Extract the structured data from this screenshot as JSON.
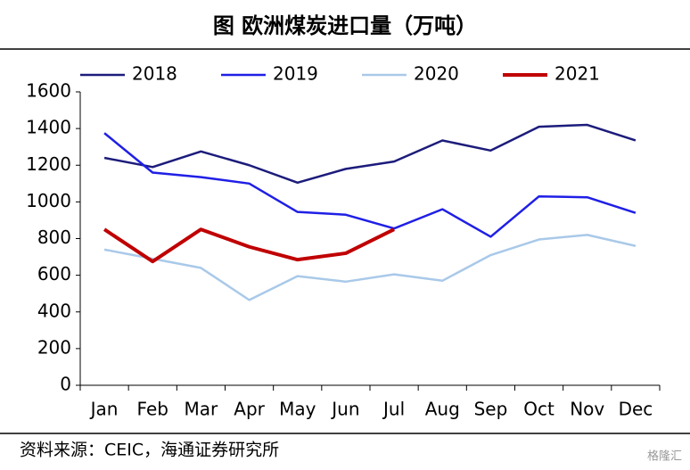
{
  "chart_data": {
    "type": "line",
    "title": "图  欧洲煤炭进口量（万吨）",
    "source": "资料来源：CEIC，海通证券研究所",
    "watermark": "格隆汇",
    "categories": [
      "Jan",
      "Feb",
      "Mar",
      "Apr",
      "May",
      "Jun",
      "Jul",
      "Aug",
      "Sep",
      "Oct",
      "Nov",
      "Dec"
    ],
    "series": [
      {
        "name": "2018",
        "color": "#1c1c7c",
        "values": [
          1240,
          1190,
          1275,
          1200,
          1105,
          1180,
          1220,
          1335,
          1280,
          1410,
          1420,
          1335
        ]
      },
      {
        "name": "2019",
        "color": "#1f1fe6",
        "values": [
          1375,
          1160,
          1135,
          1100,
          945,
          930,
          855,
          960,
          810,
          1030,
          1025,
          940
        ]
      },
      {
        "name": "2020",
        "color": "#a9c9e9",
        "values": [
          740,
          690,
          640,
          465,
          595,
          565,
          605,
          570,
          710,
          795,
          820,
          760
        ]
      },
      {
        "name": "2021",
        "color": "#c00000",
        "values": [
          850,
          675,
          850,
          755,
          685,
          720,
          850,
          null,
          null,
          null,
          null,
          null
        ]
      }
    ],
    "ylim": [
      0,
      1600
    ],
    "yticks": [
      0,
      200,
      400,
      600,
      800,
      1000,
      1200,
      1400,
      1600
    ],
    "legend": "top"
  }
}
